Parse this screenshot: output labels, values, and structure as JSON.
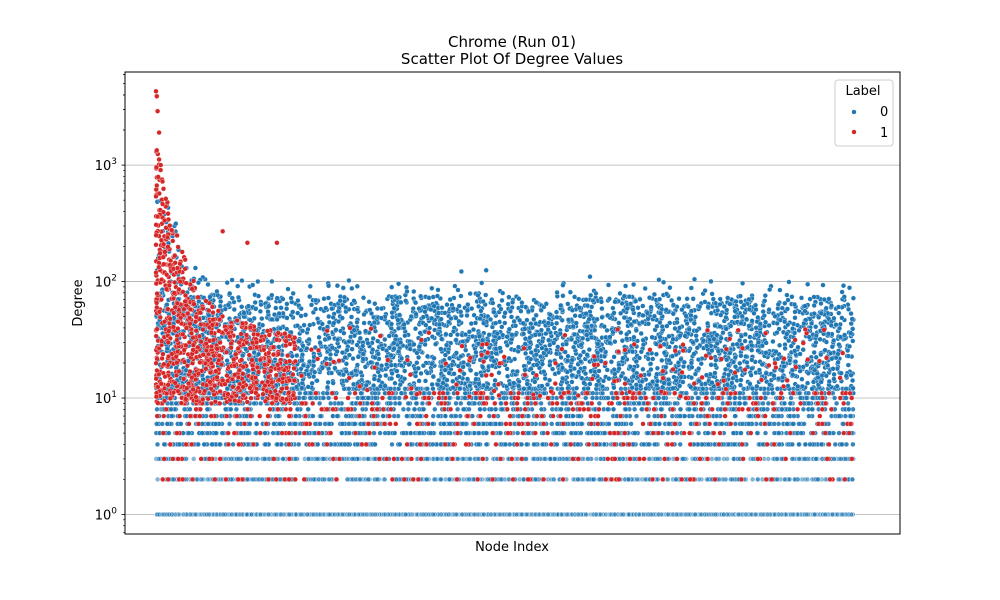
{
  "chart_data": {
    "type": "scatter",
    "title": "Chrome (Run 01)",
    "subtitle": "Scatter Plot Of Degree Values",
    "xlabel": "Node Index",
    "ylabel": "Degree",
    "yscale": "log",
    "ylim": [
      0.68,
      6300
    ],
    "xlim": [
      -200,
      4800
    ],
    "y_ticks": [
      {
        "value": 1,
        "base": "10",
        "exp": "0"
      },
      {
        "value": 10,
        "base": "10",
        "exp": "1"
      },
      {
        "value": 100,
        "base": "10",
        "exp": "2"
      },
      {
        "value": 1000,
        "base": "10",
        "exp": "3"
      }
    ],
    "grid": "y-major",
    "legend": {
      "title": "Label",
      "placement": "top-right",
      "entries": [
        {
          "label": "0",
          "color": "#1f77b4"
        },
        {
          "label": "1",
          "color": "#d62728"
        }
      ]
    },
    "series": [
      {
        "name": "0",
        "color": "#1f77b4",
        "n_points": 4500,
        "x_range": [
          0,
          4500
        ],
        "y_baseline_levels": [
          1,
          2,
          3,
          4,
          5,
          6,
          7,
          8,
          9,
          10,
          11,
          12
        ],
        "y_body_range": [
          12,
          70
        ],
        "y_max_outliers": [
          {
            "x": 2130,
            "y": 125
          },
          {
            "x": 1970,
            "y": 122
          },
          {
            "x": 2800,
            "y": 110
          }
        ]
      },
      {
        "name": "1",
        "color": "#d62728",
        "n_points": 900,
        "x_range": [
          0,
          4500
        ],
        "concentration": "x < 900",
        "y_max": 4300,
        "y_notable": [
          {
            "x": 0,
            "y": 4300
          },
          {
            "x": 5,
            "y": 3900
          },
          {
            "x": 10,
            "y": 2900
          },
          {
            "x": 20,
            "y": 1900
          },
          {
            "x": 30,
            "y": 1000
          },
          {
            "x": 430,
            "y": 270
          },
          {
            "x": 590,
            "y": 215
          },
          {
            "x": 780,
            "y": 215
          }
        ]
      }
    ]
  }
}
